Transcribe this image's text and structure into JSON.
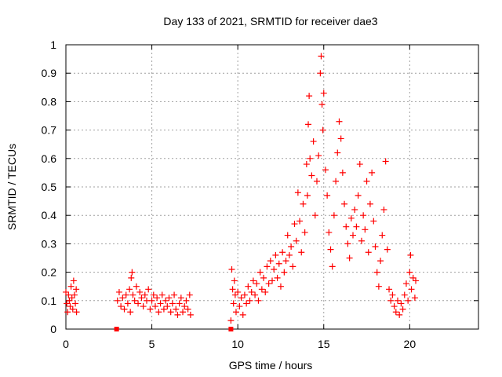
{
  "chart_data": {
    "type": "scatter",
    "title": "Day 133 of 2021, SRMTID for receiver dae3",
    "xlabel": "GPS time / hours",
    "ylabel": "SRMTID / TECUs",
    "xlim": [
      0,
      24
    ],
    "ylim": [
      0,
      1
    ],
    "x_ticks": [
      0,
      5,
      10,
      15,
      20
    ],
    "y_ticks": [
      0,
      0.1,
      0.2,
      0.3,
      0.4,
      0.5,
      0.6,
      0.7,
      0.8,
      0.9,
      1
    ],
    "x_tick_labels": [
      "0",
      "5",
      "10",
      "15",
      "20"
    ],
    "y_tick_labels": [
      "0",
      "0.1",
      "0.2",
      "0.3",
      "0.4",
      "0.5",
      "0.6",
      "0.7",
      "0.8",
      "0.9",
      "1"
    ],
    "grid": true,
    "marker": "+",
    "color": "#ff0000",
    "series": [
      {
        "name": "SRMTID",
        "points": [
          [
            0.0,
            0.13
          ],
          [
            0.05,
            0.09
          ],
          [
            0.1,
            0.06
          ],
          [
            0.15,
            0.12
          ],
          [
            0.2,
            0.1
          ],
          [
            0.25,
            0.08
          ],
          [
            0.3,
            0.15
          ],
          [
            0.35,
            0.11
          ],
          [
            0.4,
            0.07
          ],
          [
            0.45,
            0.17
          ],
          [
            0.5,
            0.12
          ],
          [
            0.55,
            0.09
          ],
          [
            0.6,
            0.14
          ],
          [
            0.62,
            0.06
          ],
          [
            2.95,
            0.0
          ],
          [
            3.0,
            0.1
          ],
          [
            3.1,
            0.13
          ],
          [
            3.2,
            0.08
          ],
          [
            3.3,
            0.11
          ],
          [
            3.4,
            0.07
          ],
          [
            3.5,
            0.12
          ],
          [
            3.6,
            0.09
          ],
          [
            3.7,
            0.14
          ],
          [
            3.75,
            0.06
          ],
          [
            3.8,
            0.18
          ],
          [
            3.85,
            0.2
          ],
          [
            3.9,
            0.12
          ],
          [
            4.0,
            0.1
          ],
          [
            4.1,
            0.15
          ],
          [
            4.2,
            0.09
          ],
          [
            4.3,
            0.13
          ],
          [
            4.4,
            0.11
          ],
          [
            4.5,
            0.08
          ],
          [
            4.6,
            0.12
          ],
          [
            4.7,
            0.1
          ],
          [
            4.8,
            0.14
          ],
          [
            4.9,
            0.07
          ],
          [
            5.0,
            0.1
          ],
          [
            5.1,
            0.12
          ],
          [
            5.2,
            0.08
          ],
          [
            5.3,
            0.11
          ],
          [
            5.4,
            0.06
          ],
          [
            5.5,
            0.09
          ],
          [
            5.6,
            0.12
          ],
          [
            5.7,
            0.07
          ],
          [
            5.8,
            0.1
          ],
          [
            5.9,
            0.08
          ],
          [
            6.0,
            0.11
          ],
          [
            6.1,
            0.06
          ],
          [
            6.2,
            0.09
          ],
          [
            6.3,
            0.12
          ],
          [
            6.4,
            0.07
          ],
          [
            6.5,
            0.05
          ],
          [
            6.6,
            0.09
          ],
          [
            6.7,
            0.11
          ],
          [
            6.8,
            0.06
          ],
          [
            6.9,
            0.08
          ],
          [
            7.0,
            0.1
          ],
          [
            7.1,
            0.07
          ],
          [
            7.2,
            0.12
          ],
          [
            7.25,
            0.05
          ],
          [
            9.6,
            0.0
          ],
          [
            9.6,
            0.03
          ],
          [
            9.65,
            0.21
          ],
          [
            9.7,
            0.14
          ],
          [
            9.75,
            0.09
          ],
          [
            9.8,
            0.17
          ],
          [
            9.85,
            0.12
          ],
          [
            9.9,
            0.06
          ],
          [
            10.0,
            0.13
          ],
          [
            10.1,
            0.08
          ],
          [
            10.2,
            0.11
          ],
          [
            10.3,
            0.05
          ],
          [
            10.4,
            0.12
          ],
          [
            10.5,
            0.09
          ],
          [
            10.6,
            0.15
          ],
          [
            10.7,
            0.1
          ],
          [
            10.8,
            0.13
          ],
          [
            10.9,
            0.17
          ],
          [
            11.0,
            0.12
          ],
          [
            11.1,
            0.16
          ],
          [
            11.2,
            0.1
          ],
          [
            11.3,
            0.2
          ],
          [
            11.4,
            0.14
          ],
          [
            11.5,
            0.18
          ],
          [
            11.6,
            0.13
          ],
          [
            11.7,
            0.22
          ],
          [
            11.8,
            0.16
          ],
          [
            11.9,
            0.24
          ],
          [
            12.0,
            0.17
          ],
          [
            12.1,
            0.21
          ],
          [
            12.2,
            0.26
          ],
          [
            12.3,
            0.18
          ],
          [
            12.4,
            0.23
          ],
          [
            12.5,
            0.15
          ],
          [
            12.6,
            0.27
          ],
          [
            12.7,
            0.2
          ],
          [
            12.8,
            0.24
          ],
          [
            12.9,
            0.33
          ],
          [
            13.0,
            0.26
          ],
          [
            13.1,
            0.29
          ],
          [
            13.2,
            0.22
          ],
          [
            13.3,
            0.37
          ],
          [
            13.4,
            0.31
          ],
          [
            13.5,
            0.48
          ],
          [
            13.6,
            0.38
          ],
          [
            13.7,
            0.27
          ],
          [
            13.8,
            0.44
          ],
          [
            13.9,
            0.34
          ],
          [
            14.0,
            0.58
          ],
          [
            14.05,
            0.47
          ],
          [
            14.1,
            0.72
          ],
          [
            14.15,
            0.82
          ],
          [
            14.2,
            0.6
          ],
          [
            14.3,
            0.54
          ],
          [
            14.4,
            0.66
          ],
          [
            14.5,
            0.4
          ],
          [
            14.6,
            0.52
          ],
          [
            14.7,
            0.61
          ],
          [
            14.8,
            0.9
          ],
          [
            14.85,
            0.96
          ],
          [
            14.9,
            0.79
          ],
          [
            14.95,
            0.7
          ],
          [
            15.0,
            0.83
          ],
          [
            15.1,
            0.56
          ],
          [
            15.2,
            0.47
          ],
          [
            15.3,
            0.34
          ],
          [
            15.4,
            0.28
          ],
          [
            15.5,
            0.22
          ],
          [
            15.6,
            0.4
          ],
          [
            15.7,
            0.52
          ],
          [
            15.8,
            0.62
          ],
          [
            15.9,
            0.73
          ],
          [
            16.0,
            0.67
          ],
          [
            16.1,
            0.55
          ],
          [
            16.2,
            0.44
          ],
          [
            16.3,
            0.36
          ],
          [
            16.4,
            0.3
          ],
          [
            16.5,
            0.25
          ],
          [
            16.6,
            0.39
          ],
          [
            16.7,
            0.33
          ],
          [
            16.8,
            0.42
          ],
          [
            16.9,
            0.36
          ],
          [
            17.0,
            0.47
          ],
          [
            17.1,
            0.58
          ],
          [
            17.2,
            0.31
          ],
          [
            17.3,
            0.4
          ],
          [
            17.4,
            0.35
          ],
          [
            17.5,
            0.52
          ],
          [
            17.6,
            0.27
          ],
          [
            17.7,
            0.44
          ],
          [
            17.8,
            0.55
          ],
          [
            17.9,
            0.38
          ],
          [
            18.0,
            0.29
          ],
          [
            18.1,
            0.2
          ],
          [
            18.2,
            0.15
          ],
          [
            18.3,
            0.24
          ],
          [
            18.4,
            0.33
          ],
          [
            18.5,
            0.42
          ],
          [
            18.6,
            0.59
          ],
          [
            18.7,
            0.28
          ],
          [
            18.8,
            0.14
          ],
          [
            18.9,
            0.1
          ],
          [
            19.0,
            0.12
          ],
          [
            19.1,
            0.08
          ],
          [
            19.2,
            0.06
          ],
          [
            19.3,
            0.1
          ],
          [
            19.4,
            0.05
          ],
          [
            19.5,
            0.09
          ],
          [
            19.6,
            0.07
          ],
          [
            19.7,
            0.12
          ],
          [
            19.8,
            0.16
          ],
          [
            19.9,
            0.1
          ],
          [
            20.0,
            0.2
          ],
          [
            20.05,
            0.26
          ],
          [
            20.1,
            0.14
          ],
          [
            20.2,
            0.18
          ],
          [
            20.3,
            0.11
          ],
          [
            20.35,
            0.17
          ]
        ]
      }
    ]
  }
}
